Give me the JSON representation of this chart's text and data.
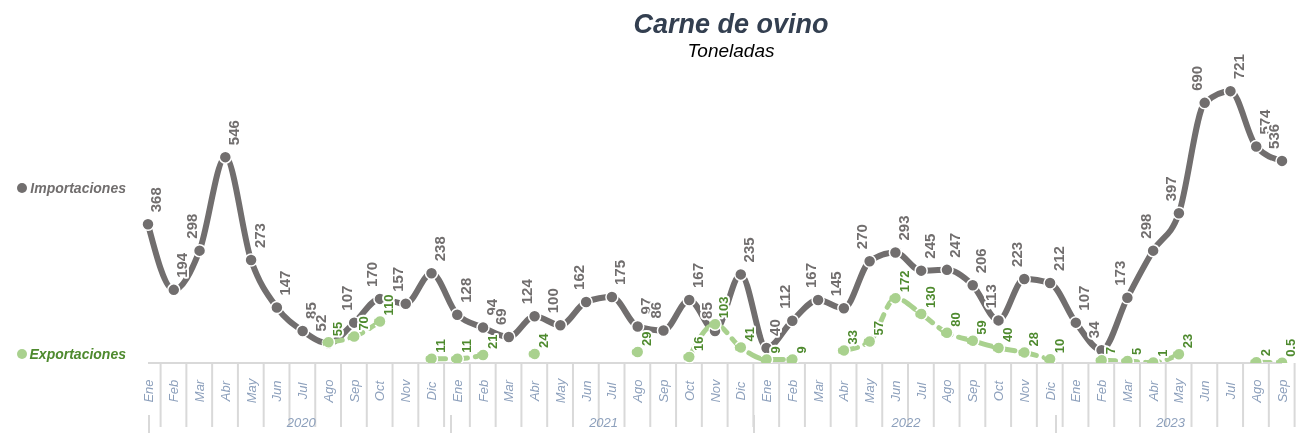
{
  "chart_data": {
    "type": "line",
    "title": "Carne de ovino",
    "subtitle": "Toneladas",
    "categories": [
      "Ene",
      "Feb",
      "Mar",
      "Abr",
      "May",
      "Jun",
      "Jul",
      "Ago",
      "Sep",
      "Oct",
      "Nov",
      "Dic",
      "Ene",
      "Feb",
      "Mar",
      "Abr",
      "May",
      "Jun",
      "Jul",
      "Ago",
      "Sep",
      "Oct",
      "Nov",
      "Dic",
      "Ene",
      "Feb",
      "Mar",
      "Abr",
      "May",
      "Jun",
      "Jul",
      "Ago",
      "Sep",
      "Oct",
      "Nov",
      "Dic",
      "Ene",
      "Feb",
      "Mar",
      "Abr",
      "May",
      "Jun",
      "Jul",
      "Ago",
      "Sep"
    ],
    "series": [
      {
        "name": "Importaciones",
        "color": "#716e6e",
        "line_style": "solid",
        "values": [
          368,
          194,
          298,
          546,
          273,
          147,
          85,
          52,
          107,
          170,
          157,
          238,
          128,
          94,
          69,
          124,
          100,
          162,
          175,
          97,
          86,
          167,
          85,
          235,
          40,
          112,
          167,
          145,
          270,
          293,
          245,
          247,
          206,
          113,
          223,
          212,
          107,
          34,
          173,
          298,
          397,
          690,
          721,
          574,
          536
        ]
      },
      {
        "name": "Exportaciones",
        "color": "#a9d18e",
        "line_style": "dashed",
        "values": [
          null,
          null,
          null,
          null,
          null,
          null,
          null,
          55,
          70,
          110,
          null,
          11,
          11,
          21,
          null,
          24,
          null,
          null,
          null,
          29,
          null,
          16,
          103,
          41,
          9,
          9,
          null,
          33,
          57,
          172,
          130,
          80,
          59,
          40,
          28,
          10,
          null,
          7,
          5,
          1,
          23,
          null,
          null,
          2,
          0.5
        ]
      }
    ],
    "annotations": [
      "2020",
      "2021",
      "2022",
      "2023"
    ],
    "data_labels": true,
    "marker": "circle",
    "legend": "left",
    "tick_labels": "x"
  }
}
